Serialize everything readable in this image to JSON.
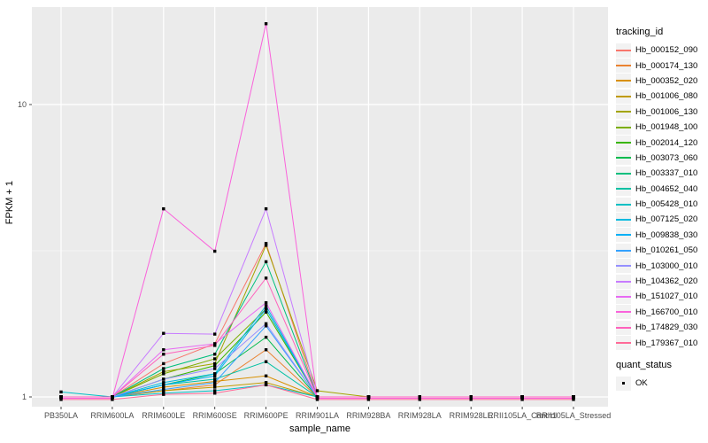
{
  "ui": {
    "axis": {
      "x_title": "sample_name",
      "y_title": "FPKM + 1"
    },
    "legend": {
      "tracking_title": "tracking_id",
      "quant_title": "quant_status",
      "quant_ok_label": "OK"
    },
    "colors": {
      "background": "#FFFFFF",
      "panel_bg": "#EBEBEB",
      "grid": "#FFFFFF",
      "tick_label": "#4D4D4D",
      "axis_tick": "#333333",
      "point": "#000000",
      "legend_key_bg": "#F2F2F2"
    }
  },
  "chart_data": {
    "type": "line",
    "title": "",
    "xlabel": "sample_name",
    "ylabel": "FPKM + 1",
    "y_scale": "log10",
    "ylim": [
      0.93,
      21.5
    ],
    "y_ticks": [
      1,
      10
    ],
    "y_minor_breaks": [
      3.1623
    ],
    "grid": true,
    "legend_position": "right",
    "marker": "black-square (quant_status OK at every point)",
    "x_categories": [
      "PB350LA",
      "RRIM600LA",
      "RRIM600LE",
      "RRIM600SE",
      "RRIM600PE",
      "RRIM901LA",
      "RRIM928BA",
      "RRIM928LA",
      "RRIM928LE",
      "RRII105LA_Control",
      "RRII105LA_Stressed"
    ],
    "series": [
      {
        "name": "Hb_000152_090",
        "color": "#F8766D",
        "values": [
          1.0,
          1.0,
          1.3,
          1.52,
          3.35,
          1.0,
          1.0,
          1.0,
          1.0,
          1.0,
          1.0
        ]
      },
      {
        "name": "Hb_000174_130",
        "color": "#EA8331",
        "values": [
          1.0,
          1.0,
          1.05,
          1.1,
          1.45,
          1.0,
          1.0,
          1.0,
          1.0,
          1.0,
          1.0
        ]
      },
      {
        "name": "Hb_000352_020",
        "color": "#D89000",
        "values": [
          1.0,
          1.0,
          1.08,
          1.13,
          1.18,
          1.0,
          1.0,
          1.0,
          1.0,
          1.0,
          1.0
        ]
      },
      {
        "name": "Hb_001006_080",
        "color": "#C09B00",
        "values": [
          1.0,
          1.0,
          1.05,
          1.08,
          1.12,
          1.0,
          1.0,
          1.0,
          1.0,
          1.0,
          1.0
        ]
      },
      {
        "name": "Hb_001006_130",
        "color": "#A3A500",
        "values": [
          1.0,
          1.0,
          1.22,
          1.3,
          3.3,
          1.05,
          1.0,
          1.0,
          1.0,
          1.0,
          1.0
        ]
      },
      {
        "name": "Hb_001948_100",
        "color": "#7CAE00",
        "values": [
          1.0,
          1.0,
          1.2,
          1.35,
          2.0,
          1.0,
          1.0,
          1.0,
          1.0,
          1.0,
          1.0
        ]
      },
      {
        "name": "Hb_002014_120",
        "color": "#39B600",
        "values": [
          1.0,
          1.0,
          1.15,
          1.28,
          1.95,
          1.0,
          1.0,
          1.0,
          1.0,
          1.0,
          1.0
        ]
      },
      {
        "name": "Hb_003073_060",
        "color": "#00BB4E",
        "values": [
          1.0,
          1.0,
          1.1,
          1.2,
          1.6,
          1.0,
          1.0,
          1.0,
          1.0,
          1.0,
          1.0
        ]
      },
      {
        "name": "Hb_003337_010",
        "color": "#00BF7D",
        "values": [
          1.0,
          1.0,
          1.25,
          1.4,
          2.9,
          1.0,
          1.0,
          1.0,
          1.0,
          1.0,
          1.0
        ]
      },
      {
        "name": "Hb_004652_040",
        "color": "#00C1A3",
        "values": [
          1.0,
          1.0,
          1.1,
          1.15,
          1.32,
          1.0,
          1.0,
          1.0,
          1.0,
          1.0,
          1.0
        ]
      },
      {
        "name": "Hb_005428_010",
        "color": "#00BFC4",
        "values": [
          1.04,
          1.0,
          1.03,
          1.05,
          1.1,
          1.0,
          1.0,
          1.0,
          1.0,
          1.0,
          1.0
        ]
      },
      {
        "name": "Hb_007125_020",
        "color": "#00BAE0",
        "values": [
          1.0,
          1.0,
          1.12,
          1.2,
          2.05,
          1.0,
          1.0,
          1.0,
          1.0,
          1.0,
          1.0
        ]
      },
      {
        "name": "Hb_009838_030",
        "color": "#00B0F6",
        "values": [
          1.0,
          1.0,
          1.1,
          1.18,
          2.0,
          1.0,
          1.0,
          1.0,
          1.0,
          1.0,
          1.0
        ]
      },
      {
        "name": "Hb_010261_050",
        "color": "#35A2FF",
        "values": [
          1.0,
          1.0,
          1.06,
          1.12,
          1.75,
          1.0,
          1.0,
          1.0,
          1.0,
          1.0,
          1.0
        ]
      },
      {
        "name": "Hb_103000_010",
        "color": "#9590FF",
        "values": [
          1.0,
          1.0,
          1.15,
          1.25,
          1.78,
          1.0,
          1.0,
          1.0,
          1.0,
          1.0,
          1.0
        ]
      },
      {
        "name": "Hb_104362_020",
        "color": "#C77CFF",
        "values": [
          1.0,
          1.0,
          1.65,
          1.64,
          4.4,
          1.0,
          1.0,
          1.0,
          1.0,
          1.0,
          1.0
        ]
      },
      {
        "name": "Hb_151027_010",
        "color": "#E76BF3",
        "values": [
          1.0,
          1.0,
          1.45,
          1.52,
          2.1,
          1.0,
          1.0,
          1.0,
          1.0,
          1.0,
          1.0
        ]
      },
      {
        "name": "Hb_166700_010",
        "color": "#FA62DB",
        "values": [
          0.99,
          0.99,
          4.4,
          3.15,
          18.9,
          0.99,
          0.99,
          0.99,
          0.99,
          0.99,
          0.99
        ]
      },
      {
        "name": "Hb_174829_030",
        "color": "#FF62BC",
        "values": [
          1.0,
          1.0,
          1.4,
          1.5,
          2.55,
          1.0,
          1.0,
          1.0,
          1.0,
          1.0,
          1.0
        ]
      },
      {
        "name": "Hb_179367_010",
        "color": "#FF6A98",
        "values": [
          0.98,
          0.98,
          1.02,
          1.03,
          1.1,
          0.98,
          0.98,
          0.98,
          0.98,
          0.98,
          0.98
        ]
      }
    ]
  }
}
